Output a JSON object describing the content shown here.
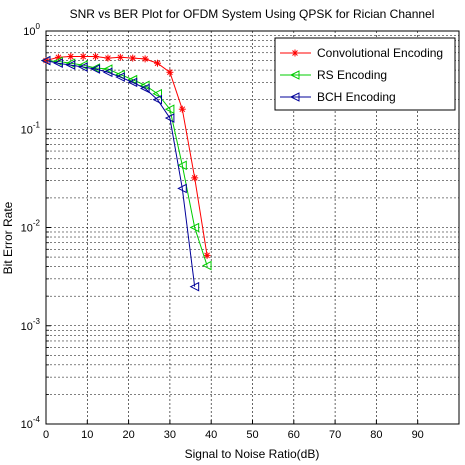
{
  "chart_data": {
    "type": "line",
    "title": "SNR vs BER Plot for OFDM System Using QPSK for Rician Channel",
    "xlabel": "Signal to Noise Ratio(dB)",
    "ylabel": "Bit Error Rate",
    "xlim": [
      0,
      100
    ],
    "ylim": [
      0.0001,
      1
    ],
    "yscale": "log",
    "grid": true,
    "legend_position": "top-right",
    "x_ticks": [
      "0",
      "10",
      "20",
      "30",
      "40",
      "50",
      "60",
      "70",
      "80",
      "90"
    ],
    "y_ticks": [
      "10^-4",
      "10^-3",
      "10^-2",
      "10^-1",
      "10^0"
    ],
    "series": [
      {
        "name": "Convolutional Encoding",
        "color": "#ff0000",
        "marker": "star",
        "x": [
          0,
          3,
          6,
          9,
          12,
          15,
          18,
          21,
          24,
          27,
          30,
          33,
          36,
          39
        ],
        "y": [
          0.5,
          0.54,
          0.55,
          0.55,
          0.55,
          0.53,
          0.54,
          0.53,
          0.52,
          0.47,
          0.38,
          0.16,
          0.032,
          0.0052
        ]
      },
      {
        "name": "RS Encoding",
        "color": "#00cc00",
        "marker": "triangle-left",
        "x": [
          0,
          3,
          6,
          9,
          12,
          15,
          18,
          21,
          24,
          27,
          30,
          33,
          36,
          39
        ],
        "y": [
          0.5,
          0.49,
          0.47,
          0.45,
          0.42,
          0.41,
          0.36,
          0.32,
          0.28,
          0.23,
          0.16,
          0.043,
          0.01,
          0.0041
        ]
      },
      {
        "name": "BCH Encoding",
        "color": "#000099",
        "marker": "triangle-left",
        "x": [
          0,
          3,
          6,
          9,
          12,
          15,
          18,
          21,
          24,
          27,
          30,
          33,
          36
        ],
        "y": [
          0.5,
          0.47,
          0.45,
          0.43,
          0.41,
          0.38,
          0.34,
          0.3,
          0.26,
          0.2,
          0.13,
          0.025,
          0.0025
        ]
      }
    ]
  }
}
